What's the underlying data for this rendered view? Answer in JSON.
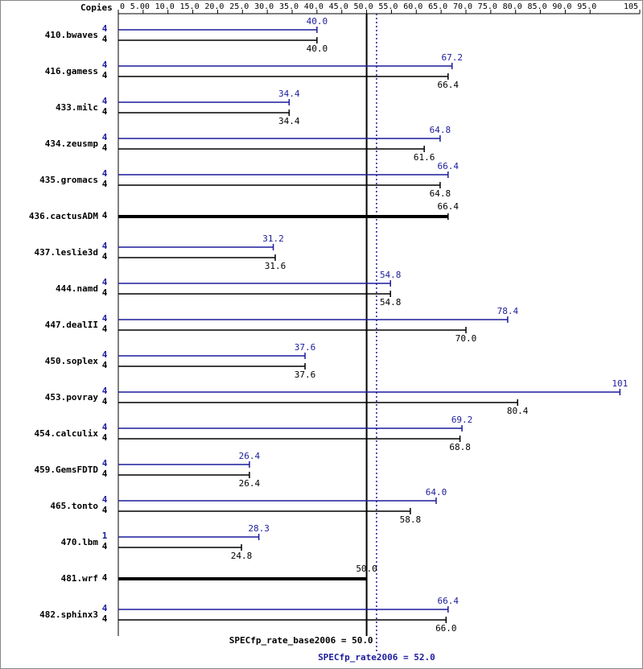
{
  "chart_data": {
    "type": "spec-bar",
    "copies_label": "Copies",
    "categories": [
      "410.bwaves",
      "416.gamess",
      "433.milc",
      "434.zeusmp",
      "435.gromacs",
      "436.cactusADM",
      "437.leslie3d",
      "444.namd",
      "447.dealII",
      "450.soplex",
      "453.povray",
      "454.calculix",
      "459.GemsFDTD",
      "465.tonto",
      "470.lbm",
      "481.wrf",
      "482.sphinx3"
    ],
    "peak": {
      "color": "#1c1c9c",
      "values": [
        40.0,
        67.2,
        34.4,
        64.8,
        66.4,
        null,
        31.2,
        54.8,
        78.4,
        37.6,
        101,
        69.2,
        26.4,
        64.0,
        28.3,
        null,
        66.4
      ],
      "value_labels": [
        "40.0",
        "67.2",
        "34.4",
        "64.8",
        "66.4",
        null,
        "31.2",
        "54.8",
        "78.4",
        "37.6",
        "101",
        "69.2",
        "26.4",
        "64.0",
        "28.3",
        null,
        "66.4"
      ],
      "copies": [
        4,
        4,
        4,
        4,
        4,
        null,
        4,
        4,
        4,
        4,
        4,
        4,
        4,
        4,
        1,
        null,
        4
      ]
    },
    "base": {
      "color": "#000000",
      "values": [
        40.0,
        66.4,
        34.4,
        61.6,
        64.8,
        66.4,
        31.6,
        54.8,
        70.0,
        37.6,
        80.4,
        68.8,
        26.4,
        58.8,
        24.8,
        50.0,
        66.0
      ],
      "value_labels": [
        "40.0",
        "66.4",
        "34.4",
        "61.6",
        "64.8",
        "66.4",
        "31.6",
        "54.8",
        "70.0",
        "37.6",
        "80.4",
        "68.8",
        "26.4",
        "58.8",
        "24.8",
        "50.0",
        "66.0"
      ],
      "copies": [
        4,
        4,
        4,
        4,
        4,
        4,
        4,
        4,
        4,
        4,
        4,
        4,
        4,
        4,
        4,
        4,
        4
      ]
    },
    "xlim": [
      0,
      105
    ],
    "xticks": [
      0,
      {
        "value": 5,
        "label": "5.00"
      },
      {
        "value": 10,
        "label": "10.0"
      },
      {
        "value": 15,
        "label": "15.0"
      },
      {
        "value": 20,
        "label": "20.0"
      },
      {
        "value": 25,
        "label": "25.0"
      },
      {
        "value": 30,
        "label": "30.0"
      },
      {
        "value": 35,
        "label": "35.0"
      },
      {
        "value": 40,
        "label": "40.0"
      },
      {
        "value": 45,
        "label": "45.0"
      },
      {
        "value": 50,
        "label": "50.0"
      },
      {
        "value": 55,
        "label": "55.0"
      },
      {
        "value": 60,
        "label": "60.0"
      },
      {
        "value": 65,
        "label": "65.0"
      },
      {
        "value": 70,
        "label": "70.0"
      },
      {
        "value": 75,
        "label": "75.0"
      },
      {
        "value": 80,
        "label": "80.0"
      },
      {
        "value": 85,
        "label": "85.0"
      },
      {
        "value": 90,
        "label": "90.0"
      },
      {
        "value": 95,
        "label": "95.0"
      },
      105
    ],
    "reference_lines": [
      {
        "label": "SPECfp_rate_base2006 = 50.0",
        "value": 50.0,
        "color": "#000000",
        "style": "solid"
      },
      {
        "label": "SPECfp_rate2006 = 52.0",
        "value": 52.0,
        "color": "#1c1c9c",
        "style": "dotted"
      }
    ]
  }
}
